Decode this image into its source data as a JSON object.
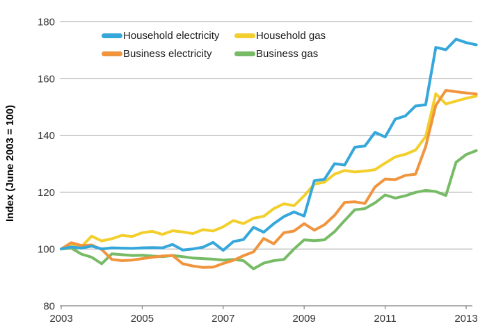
{
  "chart_data": {
    "type": "line",
    "title": "",
    "xlabel": "",
    "ylabel": "Index (June 2003 = 100)",
    "ylim": [
      80,
      180
    ],
    "ytick_labels": [
      "80",
      "100",
      "120",
      "140",
      "160",
      "180"
    ],
    "yticks": [
      80,
      100,
      120,
      140,
      160,
      180
    ],
    "xtick_labels": [
      "2003",
      "2005",
      "2007",
      "2009",
      "2011",
      "2013"
    ],
    "xticks": [
      2003,
      2005,
      2007,
      2009,
      2011,
      2013
    ],
    "grid": "horizontal-only",
    "legend_position": "top-left-inside",
    "x": [
      2003.0,
      2003.25,
      2003.5,
      2003.75,
      2004.0,
      2004.25,
      2004.5,
      2004.75,
      2005.0,
      2005.25,
      2005.5,
      2005.75,
      2006.0,
      2006.25,
      2006.5,
      2006.75,
      2007.0,
      2007.25,
      2007.5,
      2007.75,
      2008.0,
      2008.25,
      2008.5,
      2008.75,
      2009.0,
      2009.25,
      2009.5,
      2009.75,
      2010.0,
      2010.25,
      2010.5,
      2010.75,
      2011.0,
      2011.25,
      2011.5,
      2011.75,
      2012.0,
      2012.25,
      2012.5,
      2012.75,
      2013.0,
      2013.25
    ],
    "series": [
      {
        "name": "Household electricity",
        "color": "#35a7da",
        "values": [
          100,
          100.7,
          100.3,
          101.0,
          100.0,
          100.4,
          100.3,
          100.2,
          100.4,
          100.5,
          100.4,
          101.6,
          99.6,
          100.0,
          100.6,
          102.3,
          99.5,
          102.6,
          103.3,
          107.6,
          105.9,
          108.9,
          111.4,
          113.0,
          111.6,
          124.0,
          124.5,
          130.0,
          129.5,
          135.8,
          136.2,
          141.0,
          139.4,
          145.7,
          146.8,
          150.3,
          150.7,
          170.9,
          170.1,
          173.8,
          172.6,
          171.8
        ]
      },
      {
        "name": "Household gas",
        "color": "#f3cf2d",
        "values": [
          100,
          101.8,
          100.8,
          104.5,
          102.8,
          103.6,
          104.8,
          104.4,
          105.7,
          106.2,
          105.1,
          106.4,
          106.0,
          105.4,
          106.8,
          106.3,
          107.8,
          110.0,
          108.9,
          110.8,
          111.5,
          114.2,
          115.9,
          115.2,
          118.7,
          122.8,
          123.5,
          126.3,
          127.6,
          127.1,
          127.4,
          127.9,
          130.2,
          132.4,
          133.3,
          134.8,
          139.5,
          154.6,
          151.0,
          152.0,
          153.0,
          153.8
        ]
      },
      {
        "name": "Business electricity",
        "color": "#f0953e",
        "values": [
          100,
          102.2,
          101.2,
          101.4,
          99.8,
          96.3,
          95.9,
          96.1,
          96.6,
          97.1,
          97.5,
          97.7,
          94.8,
          94.0,
          93.5,
          93.6,
          94.9,
          96.0,
          97.6,
          99.0,
          103.7,
          101.8,
          105.7,
          106.3,
          108.9,
          106.6,
          108.5,
          111.8,
          116.4,
          116.6,
          116.0,
          121.8,
          124.6,
          124.4,
          125.9,
          126.3,
          136.0,
          150.5,
          155.8,
          155.3,
          154.9,
          154.5
        ]
      },
      {
        "name": "Business gas",
        "color": "#77bb66",
        "values": [
          100,
          100.3,
          98.2,
          97.1,
          94.8,
          98.3,
          98.0,
          97.7,
          97.8,
          97.5,
          97.3,
          97.7,
          97.3,
          96.8,
          96.6,
          96.4,
          96.1,
          96.3,
          95.9,
          93.0,
          95.0,
          95.9,
          96.3,
          100.0,
          103.2,
          102.9,
          103.2,
          106.1,
          110.0,
          113.8,
          114.2,
          116.2,
          119.0,
          117.9,
          118.7,
          119.9,
          120.6,
          120.2,
          118.8,
          130.5,
          133.2,
          134.6
        ]
      }
    ],
    "colors": {
      "gridline": "#a6a6a6",
      "axis": "#808080",
      "tick_text": "#333333"
    }
  }
}
